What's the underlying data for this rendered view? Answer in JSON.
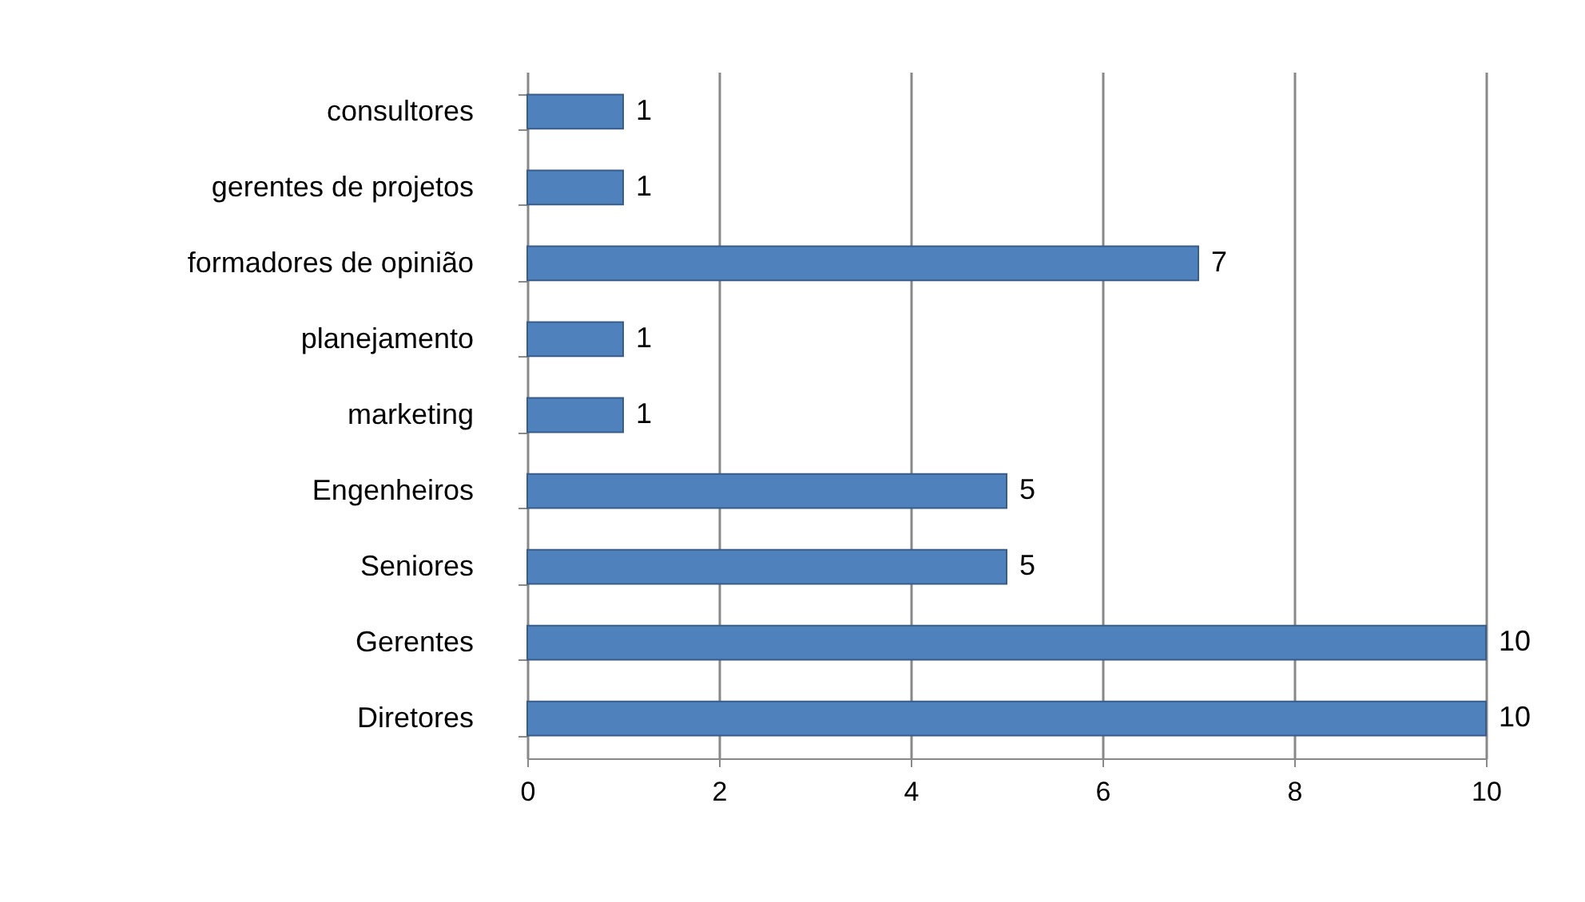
{
  "chart_data": {
    "type": "bar",
    "orientation": "horizontal",
    "categories": [
      "consultores",
      "gerentes de projetos",
      "formadores de opinião",
      "planejamento",
      "marketing",
      "Engenheiros",
      "Seniores",
      "Gerentes",
      "Diretores"
    ],
    "values": [
      1,
      1,
      7,
      1,
      1,
      5,
      5,
      10,
      10
    ],
    "color": "#4f81bd",
    "xlim": [
      0,
      10
    ],
    "xticks": [
      0,
      2,
      4,
      6,
      8,
      10
    ],
    "grid": "x",
    "data_labels": true
  }
}
